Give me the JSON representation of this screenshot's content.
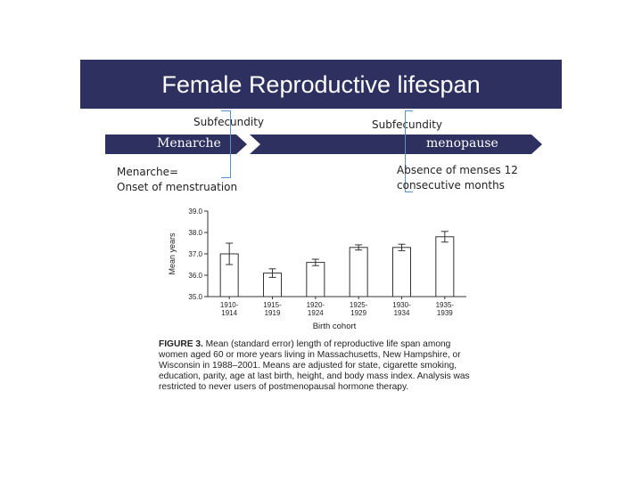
{
  "slide": {
    "title": "Female Reproductive lifespan",
    "subfecundity_left": "Subfecundity",
    "subfecundity_right": "Subfecundity",
    "menarche_label": "Menarche",
    "menopause_label": "menopause",
    "menarche_def_line1": "Menarche=",
    "menarche_def_line2": "Onset of menstruation",
    "menopause_def_line1": "Absence of menses 12",
    "menopause_def_line2": "consecutive months",
    "band_color": "#2e3160"
  },
  "chart_data": {
    "type": "bar",
    "categories": [
      "1910-\n1914",
      "1915-\n1919",
      "1920-\n1924",
      "1925-\n1929",
      "1930-\n1934",
      "1935-\n1939"
    ],
    "values": [
      37.0,
      36.1,
      36.6,
      37.3,
      37.3,
      37.8
    ],
    "error": [
      0.5,
      0.2,
      0.15,
      0.12,
      0.15,
      0.25
    ],
    "xlabel": "Birth cohort",
    "ylabel": "Mean years",
    "ylim": [
      35.0,
      39.0
    ],
    "yticks": [
      "35.0",
      "36.0",
      "37.0",
      "38.0",
      "39.0"
    ],
    "grid": false
  },
  "caption": {
    "label": "FIGURE 3.",
    "text": "Mean (standard error) length of reproductive life span among women aged 60 or more years living in Massachusetts, New Hampshire, or Wisconsin in 1988–2001. Means are adjusted for state, cigarette smoking, education, parity, age at last birth, height, and body mass index. Analysis was restricted to never users of postmenopausal hormone therapy."
  }
}
